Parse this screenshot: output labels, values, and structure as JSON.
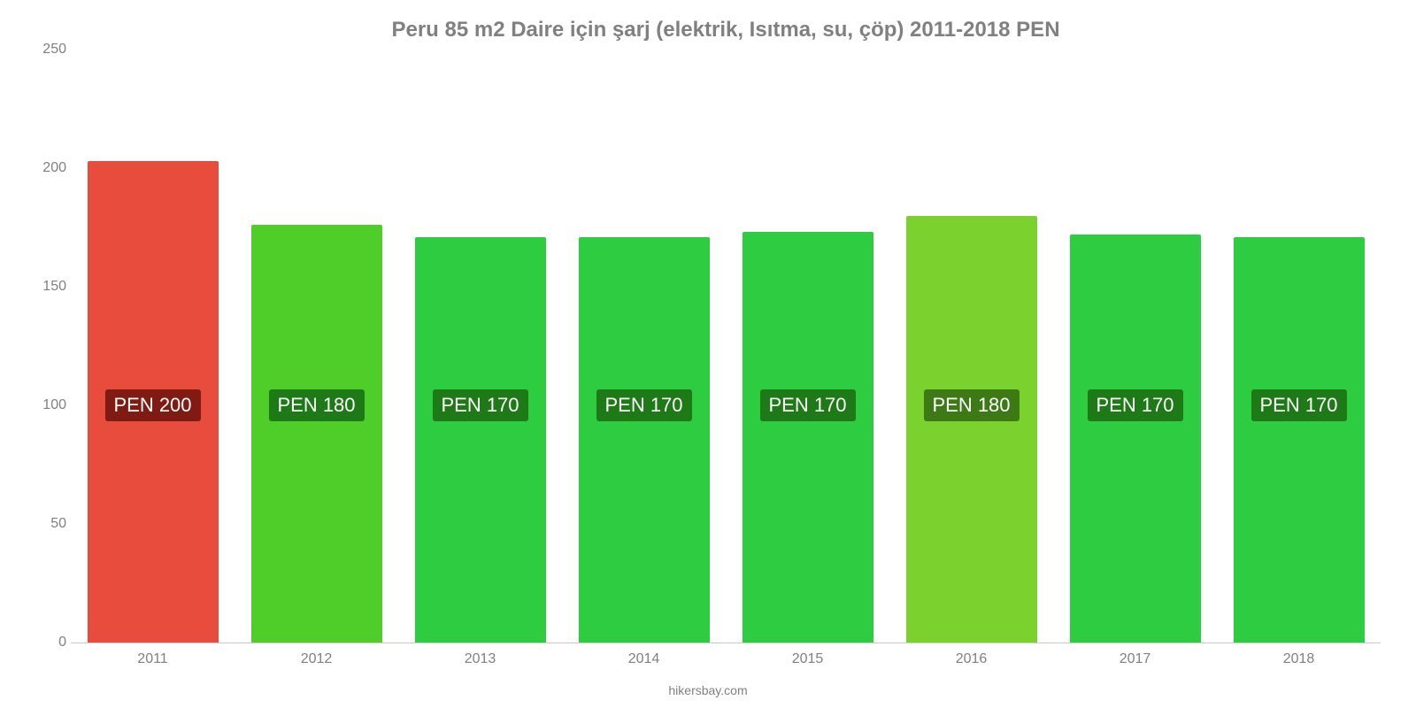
{
  "chart": {
    "type": "bar",
    "title": "Peru 85 m2 Daire için şarj (elektrik, Isıtma, su, çöp) 2011-2018 PEN",
    "title_fontsize": 24,
    "title_color": "#808080",
    "background_color": "#ffffff",
    "ylim": [
      0,
      250
    ],
    "ytick_step": 50,
    "yticks": [
      0,
      50,
      100,
      150,
      200,
      250
    ],
    "baseline_color": "#c8c8c8",
    "axis_label_color": "#808080",
    "axis_label_fontsize": 16,
    "bar_width_pct": 80,
    "label_fontsize": 22,
    "label_text_color": "#ffffff",
    "label_y_value": 100,
    "source_text": "hikersbay.com",
    "source_fontsize": 14,
    "categories": [
      "2011",
      "2012",
      "2013",
      "2014",
      "2015",
      "2016",
      "2017",
      "2018"
    ],
    "values": [
      203,
      176,
      171,
      171,
      173,
      180,
      172,
      171
    ],
    "display_labels": [
      "PEN 200",
      "PEN 180",
      "PEN 170",
      "PEN 170",
      "PEN 170",
      "PEN 180",
      "PEN 170",
      "PEN 170"
    ],
    "bar_colors": [
      "#e74c3c",
      "#4fce2a",
      "#2ecc40",
      "#2ecc40",
      "#2ecc40",
      "#7bd12e",
      "#2ecc40",
      "#2ecc40"
    ],
    "label_bg_colors": [
      "#7f1b12",
      "#1e7a16",
      "#1e7a16",
      "#1e7a16",
      "#1e7a16",
      "#3d7a16",
      "#1e7a16",
      "#1e7a16"
    ]
  }
}
